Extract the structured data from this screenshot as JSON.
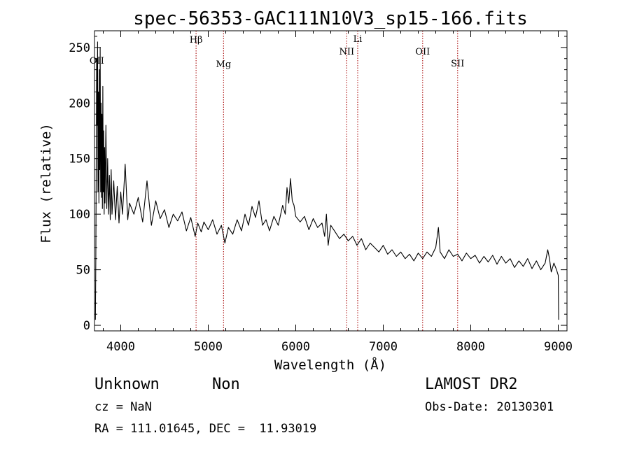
{
  "chart_data": {
    "type": "line",
    "title": "spec-56353-GAC111N10V3_sp15-166.fits",
    "xlabel": "Wavelength (Å)",
    "ylabel": "Flux (relative)",
    "xlim": [
      3700,
      9100
    ],
    "ylim": [
      -5,
      265
    ],
    "xticks": [
      4000,
      5000,
      6000,
      7000,
      8000,
      9000
    ],
    "yticks": [
      0,
      50,
      100,
      150,
      200,
      250
    ],
    "grid": false,
    "series": [
      {
        "color": "#000000",
        "points": [
          [
            3710,
            5
          ],
          [
            3715,
            60
          ],
          [
            3720,
            150
          ],
          [
            3725,
            240
          ],
          [
            3730,
            180
          ],
          [
            3735,
            255
          ],
          [
            3740,
            120
          ],
          [
            3745,
            210
          ],
          [
            3750,
            110
          ],
          [
            3755,
            230
          ],
          [
            3760,
            140
          ],
          [
            3765,
            250
          ],
          [
            3770,
            120
          ],
          [
            3775,
            200
          ],
          [
            3780,
            115
          ],
          [
            3785,
            190
          ],
          [
            3790,
            105
          ],
          [
            3795,
            215
          ],
          [
            3800,
            120
          ],
          [
            3805,
            175
          ],
          [
            3810,
            100
          ],
          [
            3815,
            160
          ],
          [
            3820,
            110
          ],
          [
            3830,
            180
          ],
          [
            3840,
            105
          ],
          [
            3850,
            150
          ],
          [
            3860,
            100
          ],
          [
            3870,
            135
          ],
          [
            3880,
            95
          ],
          [
            3890,
            140
          ],
          [
            3900,
            100
          ],
          [
            3920,
            130
          ],
          [
            3940,
            95
          ],
          [
            3960,
            125
          ],
          [
            3980,
            92
          ],
          [
            4000,
            120
          ],
          [
            4020,
            100
          ],
          [
            4050,
            145
          ],
          [
            4080,
            95
          ],
          [
            4100,
            110
          ],
          [
            4150,
            100
          ],
          [
            4200,
            115
          ],
          [
            4250,
            93
          ],
          [
            4300,
            130
          ],
          [
            4350,
            90
          ],
          [
            4400,
            112
          ],
          [
            4450,
            96
          ],
          [
            4500,
            104
          ],
          [
            4550,
            88
          ],
          [
            4600,
            100
          ],
          [
            4650,
            94
          ],
          [
            4700,
            102
          ],
          [
            4750,
            85
          ],
          [
            4800,
            97
          ],
          [
            4850,
            80
          ],
          [
            4880,
            92
          ],
          [
            4920,
            84
          ],
          [
            4950,
            93
          ],
          [
            5000,
            86
          ],
          [
            5050,
            95
          ],
          [
            5100,
            82
          ],
          [
            5150,
            90
          ],
          [
            5190,
            74
          ],
          [
            5230,
            88
          ],
          [
            5280,
            82
          ],
          [
            5330,
            95
          ],
          [
            5380,
            85
          ],
          [
            5420,
            100
          ],
          [
            5460,
            90
          ],
          [
            5500,
            107
          ],
          [
            5540,
            97
          ],
          [
            5580,
            112
          ],
          [
            5620,
            90
          ],
          [
            5660,
            95
          ],
          [
            5700,
            85
          ],
          [
            5750,
            98
          ],
          [
            5800,
            90
          ],
          [
            5850,
            108
          ],
          [
            5880,
            100
          ],
          [
            5900,
            124
          ],
          [
            5920,
            110
          ],
          [
            5940,
            132
          ],
          [
            5960,
            112
          ],
          [
            5980,
            108
          ],
          [
            6000,
            98
          ],
          [
            6050,
            93
          ],
          [
            6100,
            98
          ],
          [
            6150,
            86
          ],
          [
            6200,
            96
          ],
          [
            6250,
            88
          ],
          [
            6300,
            92
          ],
          [
            6330,
            80
          ],
          [
            6350,
            100
          ],
          [
            6370,
            72
          ],
          [
            6400,
            90
          ],
          [
            6450,
            84
          ],
          [
            6500,
            78
          ],
          [
            6550,
            82
          ],
          [
            6600,
            76
          ],
          [
            6650,
            80
          ],
          [
            6700,
            72
          ],
          [
            6750,
            78
          ],
          [
            6800,
            68
          ],
          [
            6850,
            74
          ],
          [
            6900,
            70
          ],
          [
            6950,
            66
          ],
          [
            7000,
            72
          ],
          [
            7050,
            64
          ],
          [
            7100,
            68
          ],
          [
            7150,
            62
          ],
          [
            7200,
            66
          ],
          [
            7250,
            60
          ],
          [
            7300,
            64
          ],
          [
            7350,
            58
          ],
          [
            7400,
            65
          ],
          [
            7450,
            60
          ],
          [
            7500,
            66
          ],
          [
            7550,
            62
          ],
          [
            7600,
            70
          ],
          [
            7630,
            88
          ],
          [
            7650,
            66
          ],
          [
            7700,
            60
          ],
          [
            7750,
            68
          ],
          [
            7800,
            62
          ],
          [
            7850,
            64
          ],
          [
            7900,
            58
          ],
          [
            7950,
            65
          ],
          [
            8000,
            60
          ],
          [
            8050,
            63
          ],
          [
            8100,
            56
          ],
          [
            8150,
            62
          ],
          [
            8200,
            57
          ],
          [
            8250,
            63
          ],
          [
            8300,
            55
          ],
          [
            8350,
            62
          ],
          [
            8400,
            56
          ],
          [
            8450,
            60
          ],
          [
            8500,
            52
          ],
          [
            8550,
            58
          ],
          [
            8600,
            53
          ],
          [
            8650,
            60
          ],
          [
            8700,
            51
          ],
          [
            8750,
            58
          ],
          [
            8800,
            50
          ],
          [
            8850,
            56
          ],
          [
            8880,
            68
          ],
          [
            8900,
            60
          ],
          [
            8920,
            48
          ],
          [
            8950,
            56
          ],
          [
            8980,
            50
          ],
          [
            9000,
            45
          ],
          [
            9005,
            5
          ]
        ]
      }
    ],
    "lines": [
      {
        "label": "OII",
        "x": 3727,
        "style": "none"
      },
      {
        "label": "Hβ",
        "x": 4861,
        "style": "dotted"
      },
      {
        "label": "Mg",
        "x": 5175,
        "style": "dotted"
      },
      {
        "label": "NII",
        "x": 6583,
        "style": "dotted"
      },
      {
        "label": "Li",
        "x": 6708,
        "style": "dotted"
      },
      {
        "label": "OII",
        "x": 7450,
        "style": "dotted"
      },
      {
        "label": "SII",
        "x": 7850,
        "style": "dotted"
      }
    ],
    "line_color": "#b22222"
  },
  "info": {
    "class_label": "Unknown",
    "subclass_label": "Non",
    "survey": "LAMOST DR2",
    "cz": "cz = NaN",
    "obs_date": "Obs-Date: 20130301",
    "coords": "RA = 111.01645, DEC =  11.93019"
  }
}
